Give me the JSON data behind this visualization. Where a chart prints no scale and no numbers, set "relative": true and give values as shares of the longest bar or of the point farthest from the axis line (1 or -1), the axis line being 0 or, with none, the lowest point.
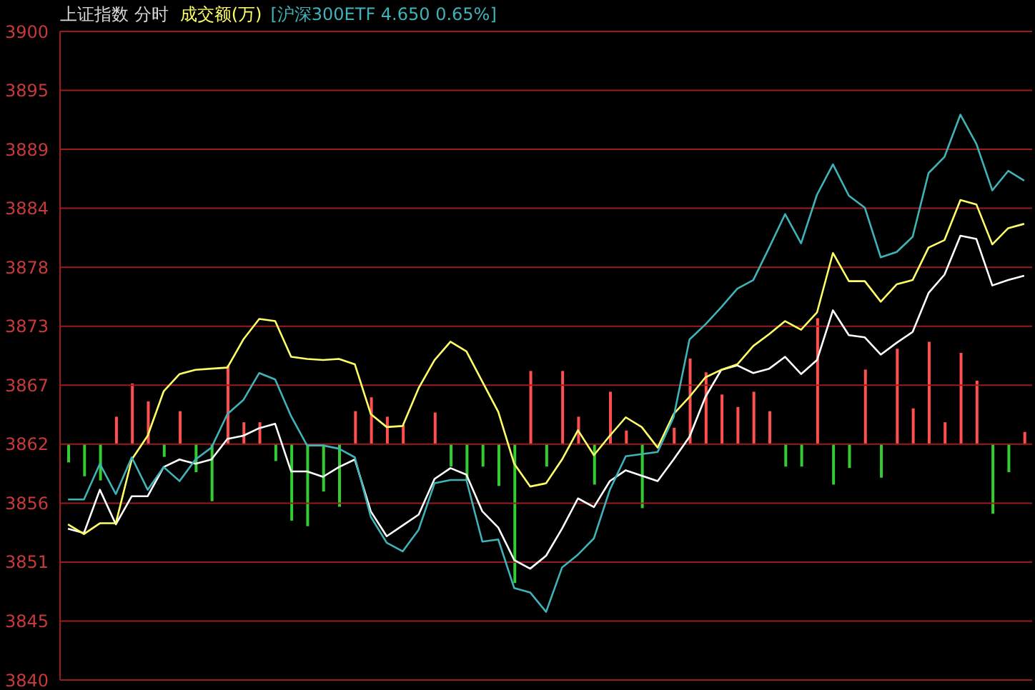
{
  "chart_data": [
    {
      "type": "line",
      "title": "上证指数  分时",
      "categories": [
        null,
        null,
        null,
        null,
        null,
        null,
        null,
        null,
        null,
        null,
        null,
        null,
        null,
        null,
        null,
        null,
        null,
        null,
        null,
        null,
        null,
        null,
        null,
        null,
        null,
        null,
        null,
        null,
        null,
        null,
        null,
        null,
        null,
        null,
        null,
        null,
        null,
        null,
        null,
        null,
        null,
        null,
        null,
        null,
        null,
        null,
        null,
        null,
        null,
        null,
        null,
        null,
        null,
        null,
        null,
        null,
        null,
        null,
        null,
        null,
        null
      ],
      "series": [
        {
          "color": "#ffffff",
          "values": [
            3854.0,
            3853.6,
            3857.6,
            3854.4,
            3857.0,
            3857.0,
            3859.7,
            3860.4,
            3860.0,
            3860.4,
            3862.3,
            3862.6,
            3863.3,
            3863.7,
            3859.3,
            3859.3,
            3858.8,
            3859.7,
            3860.4,
            3855.6,
            3853.3,
            3854.3,
            3855.3,
            3858.6,
            3859.6,
            3859.0,
            3855.6,
            3854.1,
            3851.1,
            3850.3,
            3851.5,
            3854.0,
            3856.8,
            3856.0,
            3858.4,
            3859.4,
            3858.9,
            3858.4,
            3860.4,
            3862.5,
            3866.2,
            3868.7,
            3869.1,
            3868.4,
            3868.8,
            3869.9,
            3868.3,
            3869.6,
            3874.2,
            3871.9,
            3871.7,
            3870.1,
            3871.2,
            3872.2,
            3875.8,
            3877.5,
            3881.1,
            3880.8,
            3876.5,
            3877.0,
            3877.4
          ]
        },
        {
          "name": "成交额(万)",
          "color": "#ffff66",
          "values": [
            3854.4,
            3853.5,
            3854.5,
            3854.5,
            3860.4,
            3862.6,
            3866.7,
            3868.3,
            3868.7,
            3868.8,
            3868.9,
            3871.5,
            3873.4,
            3873.2,
            3869.9,
            3869.7,
            3869.6,
            3869.7,
            3869.2,
            3864.6,
            3863.4,
            3863.5,
            3867.0,
            3869.6,
            3871.3,
            3870.4,
            3867.6,
            3864.8,
            3860.0,
            3857.9,
            3858.2,
            3860.4,
            3863.1,
            3860.8,
            3862.6,
            3864.3,
            3863.4,
            3861.5,
            3864.6,
            3866.2,
            3868.0,
            3868.7,
            3869.2,
            3870.9,
            3872.0,
            3873.2,
            3872.4,
            3874.0,
            3879.5,
            3876.9,
            3876.9,
            3875.0,
            3876.6,
            3877.0,
            3880.0,
            3880.7,
            3884.4,
            3884.0,
            3880.3,
            3881.8,
            3882.2
          ]
        },
        {
          "name": "[沪深300ETF 4.650 0.65%]",
          "color": "#3fb3b8",
          "values": [
            3856.7,
            3856.7,
            3860.0,
            3857.2,
            3860.6,
            3857.6,
            3859.7,
            3858.4,
            3860.4,
            3861.5,
            3864.6,
            3865.9,
            3868.4,
            3867.8,
            3864.4,
            3861.7,
            3861.7,
            3861.4,
            3860.6,
            3855.1,
            3852.7,
            3851.9,
            3853.9,
            3858.2,
            3858.5,
            3858.5,
            3852.8,
            3853.0,
            3848.5,
            3848.1,
            3846.3,
            3850.4,
            3851.6,
            3853.1,
            3857.6,
            3860.7,
            3860.9,
            3861.1,
            3864.3,
            3871.5,
            3872.9,
            3874.5,
            3876.2,
            3877.0,
            3880.0,
            3883.1,
            3880.4,
            3884.9,
            3887.7,
            3884.8,
            3883.7,
            3879.1,
            3879.6,
            3881.0,
            3886.9,
            3888.4,
            3892.3,
            3889.6,
            3885.3,
            3887.1,
            3886.2
          ]
        }
      ],
      "ylim": [
        3840,
        3900
      ],
      "yticks": [
        {
          "value": 3840,
          "label": "3840"
        },
        {
          "value": 3845.45,
          "label": "3845"
        },
        {
          "value": 3850.91,
          "label": "3851"
        },
        {
          "value": 3856.36,
          "label": "3856"
        },
        {
          "value": 3861.82,
          "label": "3862"
        },
        {
          "value": 3867.27,
          "label": "3867"
        },
        {
          "value": 3872.73,
          "label": "3873"
        },
        {
          "value": 3878.18,
          "label": "3878"
        },
        {
          "value": 3883.64,
          "label": "3884"
        },
        {
          "value": 3889.09,
          "label": "3889"
        },
        {
          "value": 3894.55,
          "label": "3895"
        },
        {
          "value": 3900,
          "label": "3900"
        }
      ],
      "grid": "y",
      "legend": "top left"
    },
    {
      "type": "bar",
      "relative": true,
      "categories": [
        null,
        null,
        null,
        null,
        null,
        null,
        null,
        null,
        null,
        null,
        null,
        null,
        null,
        null,
        null,
        null,
        null,
        null,
        null,
        null,
        null,
        null,
        null,
        null,
        null,
        null,
        null,
        null,
        null,
        null,
        null,
        null,
        null,
        null,
        null,
        null,
        null,
        null,
        null,
        null,
        null,
        null,
        null,
        null,
        null,
        null,
        null,
        null,
        null,
        null,
        null,
        null,
        null,
        null,
        null,
        null,
        null,
        null,
        null,
        null,
        null
      ],
      "values": [
        -0.13,
        -0.23,
        -0.26,
        0.2,
        0.44,
        0.31,
        -0.09,
        0.24,
        -0.2,
        -0.41,
        0.57,
        0.16,
        0.16,
        -0.12,
        -0.55,
        -0.59,
        -0.34,
        -0.45,
        0.24,
        0.34,
        0.2,
        0.14,
        null,
        0.23,
        -0.16,
        -0.26,
        -0.16,
        -0.3,
        -1,
        0.53,
        -0.16,
        0.53,
        0.2,
        -0.29,
        0.38,
        0.1,
        -0.46,
        null,
        0.12,
        0.62,
        0.52,
        0.36,
        0.27,
        0.38,
        0.24,
        -0.16,
        -0.16,
        0.91,
        -0.29,
        -0.17,
        0.54,
        -0.24,
        0.69,
        0.26,
        0.74,
        0.16,
        0.66,
        0.46,
        -0.5,
        -0.2,
        0.09
      ],
      "colors": [
        "#33cc33",
        "#33cc33",
        "#33cc33",
        "#ff4f4f",
        "#ff4f4f",
        "#ff4f4f",
        "#33cc33",
        "#ff4f4f",
        "#33cc33",
        "#33cc33",
        "#ff4f4f",
        "#ff4f4f",
        "#ff4f4f",
        "#33cc33",
        "#33cc33",
        "#33cc33",
        "#33cc33",
        "#33cc33",
        "#ff4f4f",
        "#ff4f4f",
        "#ff4f4f",
        "#ff4f4f",
        "#ff4f4f",
        "#ff4f4f",
        "#33cc33",
        "#33cc33",
        "#33cc33",
        "#33cc33",
        "#33cc33",
        "#ff4f4f",
        "#33cc33",
        "#ff4f4f",
        "#ff4f4f",
        "#33cc33",
        "#ff4f4f",
        "#ff4f4f",
        "#33cc33",
        "#ff4f4f",
        "#ff4f4f",
        "#ff4f4f",
        "#ff4f4f",
        "#ff4f4f",
        "#ff4f4f",
        "#ff4f4f",
        "#ff4f4f",
        "#33cc33",
        "#33cc33",
        "#ff4f4f",
        "#33cc33",
        "#33cc33",
        "#ff4f4f",
        "#33cc33",
        "#ff4f4f",
        "#ff4f4f",
        "#ff4f4f",
        "#ff4f4f",
        "#ff4f4f",
        "#ff4f4f",
        "#33cc33",
        "#33cc33",
        "#ff4f4f"
      ]
    }
  ]
}
